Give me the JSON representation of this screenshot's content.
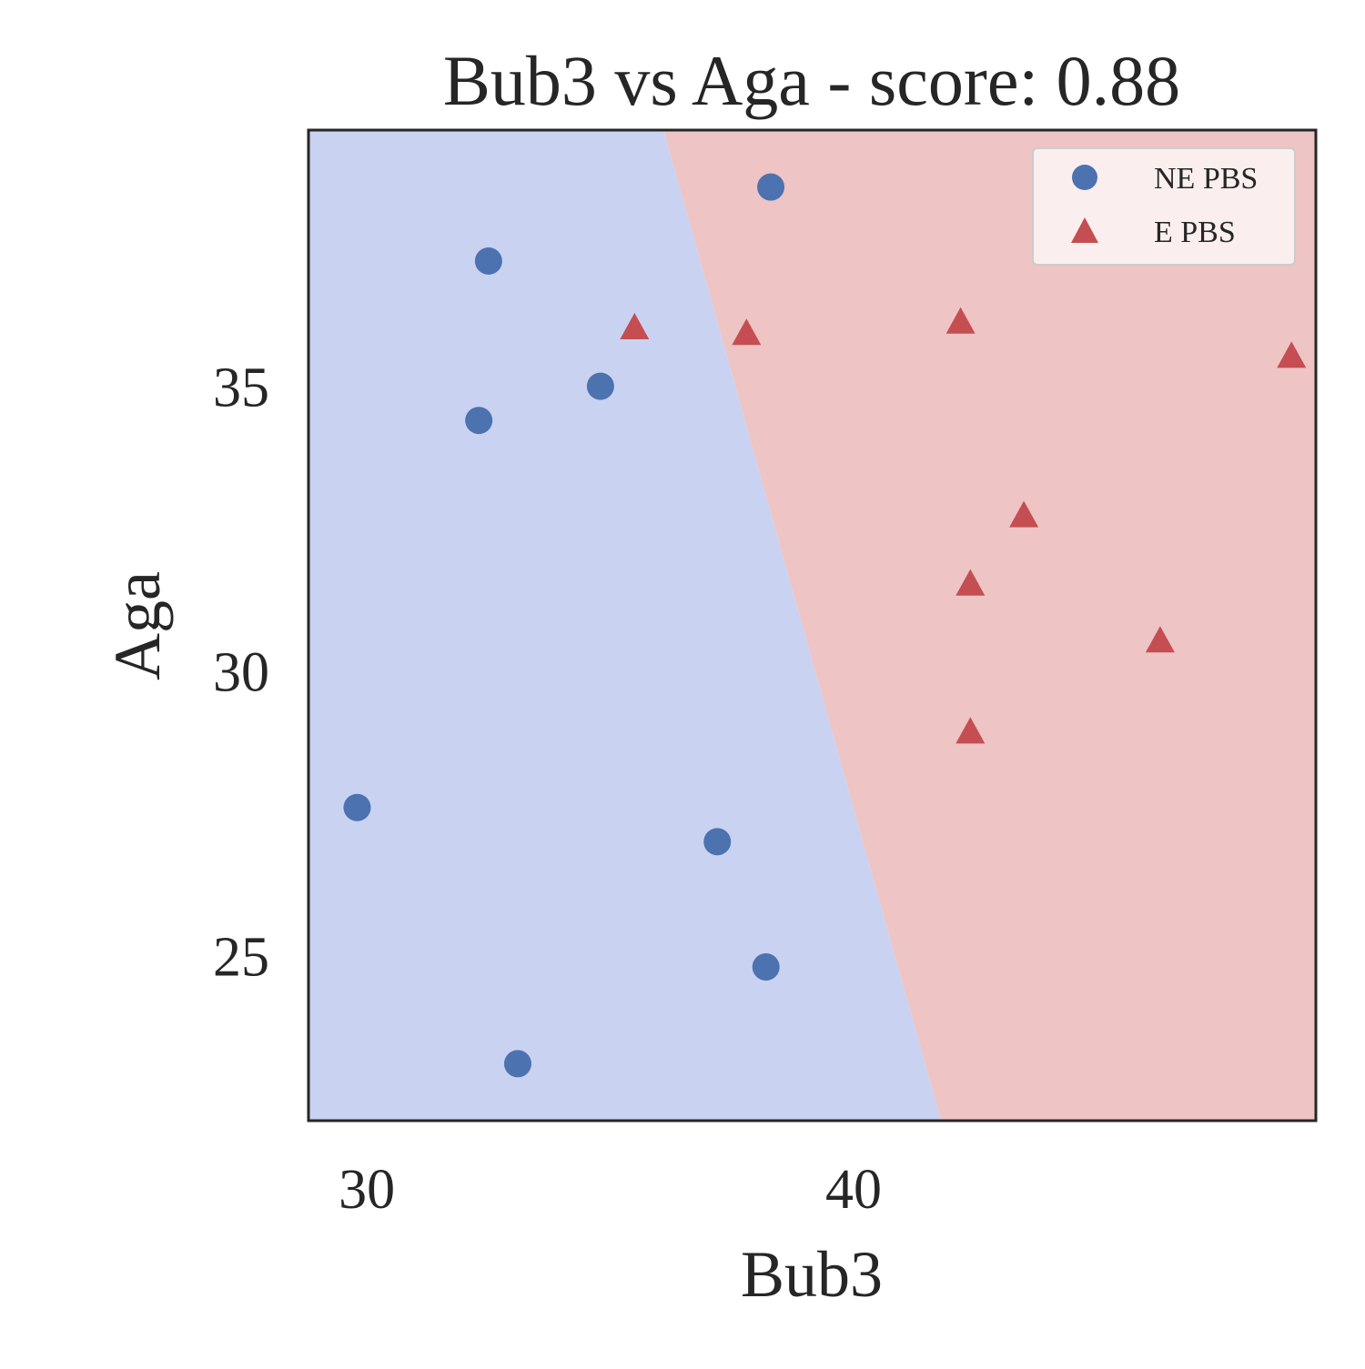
{
  "chart_data": {
    "type": "scatter",
    "title": "Bub3 vs Aga - score: 0.88",
    "xlabel": "Bub3",
    "ylabel": "Aga",
    "xlim": [
      28.8,
      49.5
    ],
    "ylim": [
      22.1,
      39.5
    ],
    "xticks": [
      30,
      40
    ],
    "yticks": [
      25,
      30,
      35
    ],
    "grid": false,
    "legend_position": "top-right",
    "decision_boundary": {
      "points": [
        [
          36.1,
          39.5
        ],
        [
          41.8,
          22.1
        ]
      ],
      "left_region": "NE PBS",
      "right_region": "E PBS"
    },
    "series": [
      {
        "name": "NE PBS",
        "marker": "circle",
        "color": "#4c72b0",
        "points": [
          [
            38.3,
            38.5
          ],
          [
            32.5,
            37.2
          ],
          [
            34.8,
            35.0
          ],
          [
            32.3,
            34.4
          ],
          [
            29.8,
            27.6
          ],
          [
            37.2,
            27.0
          ],
          [
            38.2,
            24.8
          ],
          [
            33.1,
            23.1
          ]
        ]
      },
      {
        "name": "E PBS",
        "marker": "triangle",
        "color": "#c44e52",
        "points": [
          [
            35.5,
            36.0
          ],
          [
            37.8,
            35.9
          ],
          [
            42.2,
            36.1
          ],
          [
            49.0,
            35.5
          ],
          [
            43.5,
            32.7
          ],
          [
            42.4,
            31.5
          ],
          [
            46.3,
            30.5
          ],
          [
            42.4,
            28.9
          ]
        ]
      }
    ],
    "colors": {
      "region_ne": "#c9d2f1",
      "region_e": "#eec4c4",
      "axes_edge": "#262626"
    }
  }
}
